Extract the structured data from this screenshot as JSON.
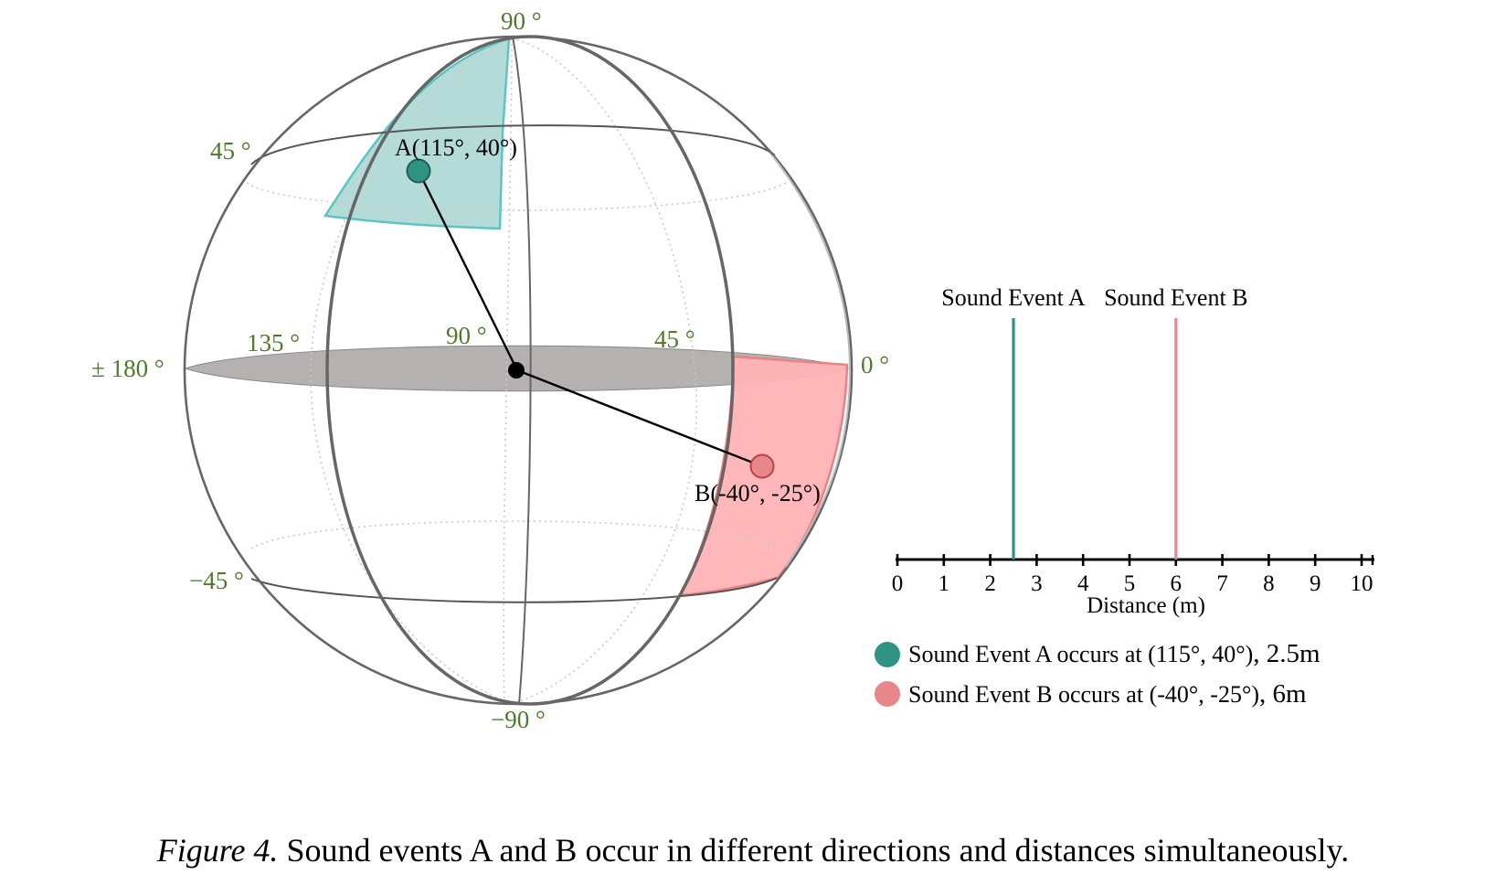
{
  "sphere": {
    "angle_labels": {
      "lat_top": "90 °",
      "lat_45": "45 °",
      "lat_minus_45": "−45 °",
      "lat_bottom": "−90 °",
      "lon_180": "± 180 °",
      "lon_135": "135 °",
      "lon_90": "90 °",
      "lon_45": "45 °",
      "lon_0": "0 °"
    },
    "event_a": {
      "label": "A(115°, 40°)",
      "color": "#2e9383",
      "region_color": "#a8d5d2",
      "region_border": "#5cc4c4"
    },
    "event_b": {
      "label": "B(-40°, -25°)",
      "color": "#e8878a",
      "region_color": "#ffb3b5",
      "region_border": "#ee8084"
    },
    "equator_fill": "#b5b1b1",
    "line_color": "#555555"
  },
  "distance_chart": {
    "series_labels": [
      "Sound Event A",
      "Sound Event B"
    ],
    "distances": [
      2.5,
      6
    ],
    "colors": [
      "#2e9383",
      "#e8878a"
    ],
    "axis_label": "Distance (m)",
    "ticks": [
      "0",
      "1",
      "2",
      "3",
      "4",
      "5",
      "6",
      "7",
      "8",
      "9",
      "10"
    ],
    "xlim": [
      0,
      10
    ]
  },
  "legend": {
    "items": [
      {
        "prefix": "Sound Event A occurs at (115°, 40°)",
        "suffix": ", 2.5m",
        "color": "#2e9383"
      },
      {
        "prefix": "Sound Event B occurs at (-40°, -25°)",
        "suffix": ", 6m",
        "color": "#e8878a"
      }
    ]
  },
  "caption": {
    "label": "Figure 4.",
    "text": " Sound events A and B occur in different directions and distances simultaneously."
  }
}
